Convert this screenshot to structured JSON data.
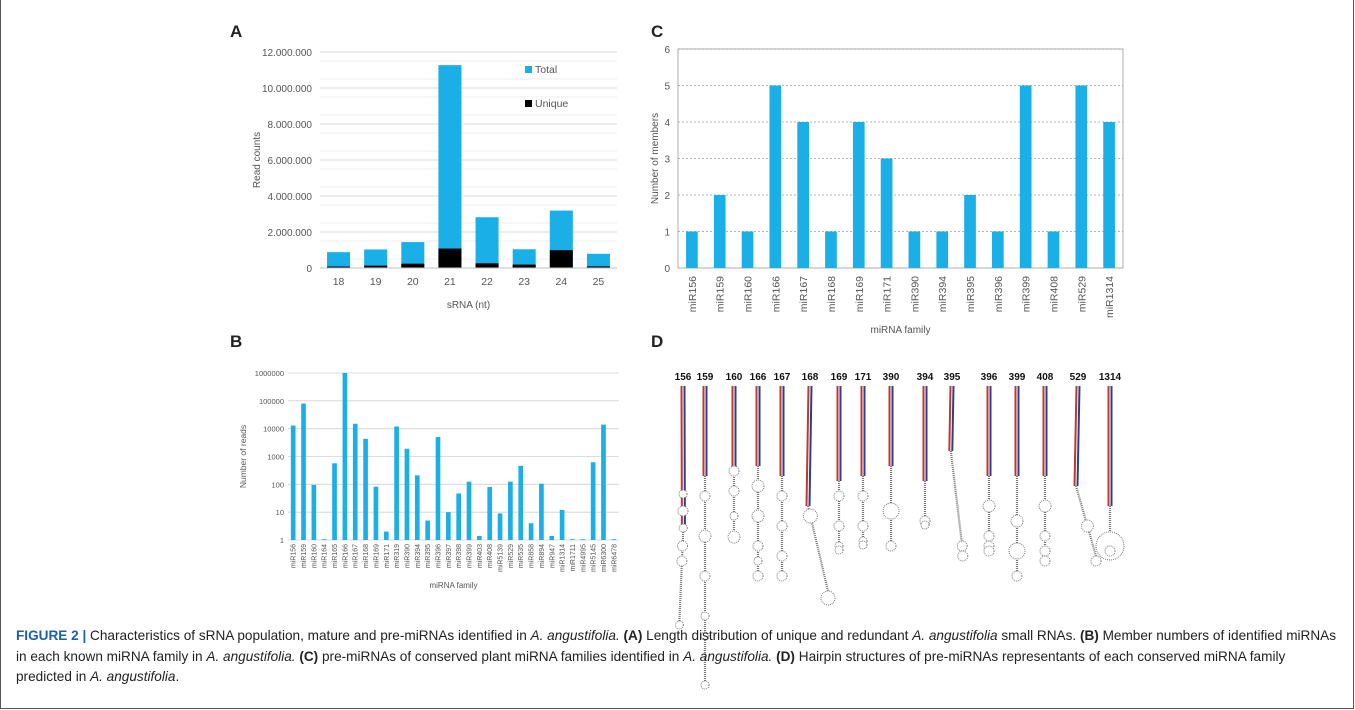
{
  "panels": {
    "A": {
      "label": "A",
      "chart_data": {
        "type": "bar",
        "stacked": true,
        "categories": [
          "18",
          "19",
          "20",
          "21",
          "22",
          "23",
          "24",
          "25"
        ],
        "series": [
          {
            "name": "Total",
            "values": [
              880000,
              1030000,
              1440000,
              11270000,
              2820000,
              1040000,
              3190000,
              790000
            ],
            "color": "#1aafe6"
          },
          {
            "name": "Unique",
            "values": [
              80000,
              130000,
              240000,
              1080000,
              260000,
              190000,
              990000,
              90000
            ],
            "color": "#000000"
          }
        ],
        "xlabel": "sRNA (nt)",
        "ylabel": "Read counts",
        "ylim": [
          0,
          12000000
        ],
        "yticks": [
          0,
          2000000,
          4000000,
          6000000,
          8000000,
          10000000,
          12000000
        ],
        "ytick_labels": [
          "0",
          "2.000.000",
          "4.000.000",
          "6.000.000",
          "8.000.000",
          "10.000.000",
          "12.000.000"
        ],
        "grid": true,
        "legend": "top-right"
      }
    },
    "B": {
      "label": "B",
      "chart_data": {
        "type": "bar",
        "log_scale": true,
        "categories": [
          "miR156",
          "miR159",
          "miR160",
          "miR164",
          "miR165",
          "miR166",
          "miR167",
          "miR168",
          "miR169",
          "miR171",
          "miR319",
          "miR390",
          "miR394",
          "miR395",
          "miR396",
          "miR397",
          "miR398",
          "miR399",
          "miR403",
          "miR408",
          "miR5139",
          "miR529",
          "miR535",
          "miR858",
          "miR894",
          "miR947",
          "miR1314",
          "miR1711",
          "miR4995",
          "miR5145",
          "miR6300",
          "miR6478"
        ],
        "values": [
          13000,
          80000,
          95,
          1,
          570,
          1000000,
          15000,
          4300,
          82,
          2,
          12000,
          1900,
          210,
          5,
          5000,
          10,
          47,
          125,
          1.4,
          80,
          9,
          125,
          460,
          4,
          105,
          1.4,
          12,
          1,
          1,
          620,
          14000,
          1
        ],
        "xlabel": "miRNA family",
        "ylabel": "Number of reads",
        "ylim": [
          1,
          1000000
        ],
        "ytick_labels": [
          "1",
          "10",
          "100",
          "1000",
          "10000",
          "100000",
          "1000000"
        ],
        "grid": true,
        "color": "#1aafe6"
      }
    },
    "C": {
      "label": "C",
      "chart_data": {
        "type": "bar",
        "categories": [
          "miR156",
          "miR159",
          "miR160",
          "miR166",
          "miR167",
          "miR168",
          "miR169",
          "miR171",
          "miR390",
          "miR394",
          "miR395",
          "miR396",
          "miR399",
          "miR408",
          "miR529",
          "miR1314"
        ],
        "values": [
          1,
          2,
          1,
          5,
          4,
          1,
          4,
          3,
          1,
          1,
          2,
          1,
          5,
          1,
          5,
          4
        ],
        "xlabel": "miRNA family",
        "ylabel": "Number of members",
        "ylim": [
          0,
          6
        ],
        "ytick_labels": [
          "0",
          "1",
          "2",
          "3",
          "4",
          "5",
          "6"
        ],
        "grid": true,
        "color": "#1aafe6"
      }
    },
    "D": {
      "label": "D",
      "hairpin_labels": [
        "156",
        "159",
        "160",
        "166",
        "167",
        "168",
        "169",
        "171",
        "390",
        "394",
        "395",
        "396",
        "399",
        "408",
        "529",
        "1314"
      ]
    }
  },
  "caption": {
    "fig": "FIGURE 2 |",
    "t1": " Characteristics of sRNA population, mature and pre-miRNAs identified in ",
    "sp1": "A. angustifolia.",
    "a": " (A)",
    "t2": " Length distribution of unique and redundant ",
    "sp2": "A. angustifolia",
    "t3": " small RNAs. ",
    "b": "(B)",
    "t4": " Member numbers of identified miRNAs in each known miRNA family in ",
    "sp3": "A. angustifolia.",
    "c": " (C)",
    "t5": " pre-miRNAs of conserved plant miRNA families identified in ",
    "sp4": "A. angustifolia.",
    "d": " (D)",
    "t6": " Hairpin structures of pre-miRNAs representants of each conserved miRNA family predicted in ",
    "sp5": "A. angustifolia",
    "t7": "."
  }
}
